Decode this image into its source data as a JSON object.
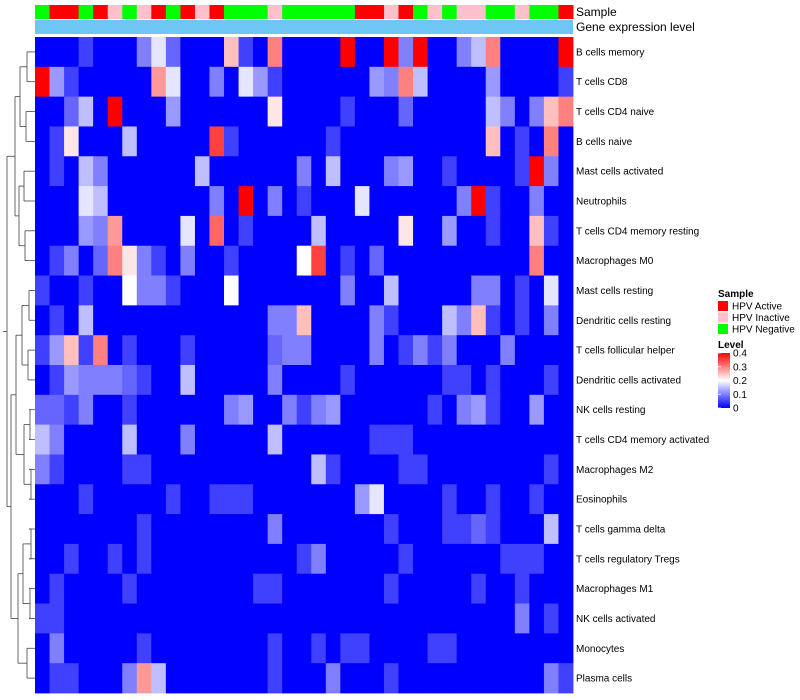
{
  "chart_data": {
    "type": "heatmap",
    "annotation_tracks": {
      "sample_label": "Sample",
      "expression_label": "Gene expression level"
    },
    "sample_legend": {
      "title": "Sample",
      "items": [
        {
          "label": "HPV Active",
          "color": "#FF0000"
        },
        {
          "label": "HPV Inactive",
          "color": "#FFC0CB"
        },
        {
          "label": "HPV Negative",
          "color": "#00FF00"
        }
      ]
    },
    "level_legend": {
      "title": "Level",
      "ticks": [
        "0.4",
        "0.3",
        "0.2",
        "0.1",
        "0"
      ],
      "range": [
        0,
        0.4
      ],
      "colors": {
        "low": "#0000FF",
        "mid": "#FFFFFF",
        "high": "#FF0000"
      }
    },
    "sample_groups": [
      "G",
      "A",
      "A",
      "G",
      "A",
      "I",
      "G",
      "I",
      "A",
      "G",
      "A",
      "I",
      "A",
      "G",
      "G",
      "G",
      "I",
      "G",
      "G",
      "G",
      "G",
      "G",
      "A",
      "A",
      "I",
      "A",
      "G",
      "I",
      "G",
      "I",
      "I",
      "G",
      "G",
      "I",
      "G",
      "G",
      "A"
    ],
    "rows": [
      "B cells memory",
      "T cells CD8",
      "T cells CD4 naive",
      "B cells naive",
      "Mast cells activated",
      "Neutrophils",
      "T cells CD4 memory resting",
      "Macrophages M0",
      "Mast cells resting",
      "Dendritic cells resting",
      "T cells follicular helper",
      "Dendritic cells activated",
      "NK cells resting",
      "T cells CD4 memory activated",
      "Macrophages M2",
      "Eosinophils",
      "T cells gamma delta",
      "T cells regulatory  Tregs",
      "Macrophages M1",
      "NK cells activated",
      "Monocytes",
      "Plasma cells"
    ],
    "values": [
      [
        0.0,
        0.0,
        0.0,
        0.05,
        0.0,
        0.0,
        0.0,
        0.1,
        0.18,
        0.08,
        0.0,
        0.0,
        0.0,
        0.25,
        0.05,
        0.0,
        0.3,
        0.0,
        0.0,
        0.0,
        0.0,
        0.4,
        0.0,
        0.0,
        0.4,
        0.1,
        0.4,
        0.0,
        0.0,
        0.1,
        0.15,
        0.3,
        0.0,
        0.0,
        0.0,
        0.0,
        0.4
      ],
      [
        0.4,
        0.12,
        0.05,
        0.0,
        0.0,
        0.0,
        0.0,
        0.0,
        0.28,
        0.18,
        0.0,
        0.0,
        0.1,
        0.0,
        0.18,
        0.12,
        0.05,
        0.0,
        0.0,
        0.0,
        0.0,
        0.0,
        0.0,
        0.12,
        0.1,
        0.3,
        0.15,
        0.0,
        0.0,
        0.0,
        0.0,
        0.12,
        0.0,
        0.0,
        0.0,
        0.0,
        0.05
      ],
      [
        0.0,
        0.0,
        0.08,
        0.15,
        0.0,
        0.4,
        0.0,
        0.0,
        0.0,
        0.12,
        0.0,
        0.0,
        0.0,
        0.0,
        0.0,
        0.0,
        0.22,
        0.0,
        0.0,
        0.0,
        0.0,
        0.05,
        0.0,
        0.0,
        0.0,
        0.08,
        0.0,
        0.0,
        0.0,
        0.0,
        0.0,
        0.15,
        0.1,
        0.0,
        0.1,
        0.25,
        0.3
      ],
      [
        0.0,
        0.05,
        0.22,
        0.0,
        0.0,
        0.0,
        0.15,
        0.0,
        0.0,
        0.0,
        0.0,
        0.0,
        0.35,
        0.05,
        0.0,
        0.0,
        0.0,
        0.0,
        0.0,
        0.0,
        0.05,
        0.0,
        0.0,
        0.0,
        0.0,
        0.0,
        0.0,
        0.0,
        0.0,
        0.0,
        0.0,
        0.25,
        0.0,
        0.05,
        0.0,
        0.3,
        0.0
      ],
      [
        0.0,
        0.05,
        0.0,
        0.15,
        0.1,
        0.0,
        0.0,
        0.0,
        0.0,
        0.0,
        0.0,
        0.15,
        0.0,
        0.0,
        0.0,
        0.0,
        0.0,
        0.0,
        0.1,
        0.0,
        0.15,
        0.0,
        0.0,
        0.0,
        0.1,
        0.12,
        0.0,
        0.0,
        0.05,
        0.0,
        0.0,
        0.0,
        0.0,
        0.05,
        0.4,
        0.1,
        0.0
      ],
      [
        0.0,
        0.0,
        0.0,
        0.18,
        0.15,
        0.0,
        0.0,
        0.0,
        0.0,
        0.0,
        0.0,
        0.0,
        0.1,
        0.0,
        0.4,
        0.0,
        0.1,
        0.0,
        0.05,
        0.0,
        0.0,
        0.0,
        0.18,
        0.0,
        0.0,
        0.0,
        0.0,
        0.0,
        0.0,
        0.1,
        0.4,
        0.05,
        0.0,
        0.0,
        0.1,
        0.0,
        0.0
      ],
      [
        0.0,
        0.0,
        0.0,
        0.12,
        0.1,
        0.28,
        0.0,
        0.0,
        0.0,
        0.0,
        0.18,
        0.0,
        0.32,
        0.0,
        0.05,
        0.0,
        0.0,
        0.0,
        0.0,
        0.15,
        0.0,
        0.0,
        0.0,
        0.0,
        0.0,
        0.22,
        0.0,
        0.0,
        0.12,
        0.0,
        0.0,
        0.05,
        0.0,
        0.0,
        0.25,
        0.05,
        0.0
      ],
      [
        0.0,
        0.05,
        0.1,
        0.0,
        0.08,
        0.3,
        0.22,
        0.1,
        0.05,
        0.0,
        0.1,
        0.0,
        0.0,
        0.05,
        0.0,
        0.0,
        0.0,
        0.0,
        0.2,
        0.35,
        0.0,
        0.05,
        0.0,
        0.08,
        0.0,
        0.0,
        0.0,
        0.0,
        0.0,
        0.0,
        0.0,
        0.0,
        0.0,
        0.0,
        0.3,
        0.0,
        0.0
      ],
      [
        0.05,
        0.0,
        0.0,
        0.05,
        0.0,
        0.0,
        0.2,
        0.1,
        0.1,
        0.05,
        0.0,
        0.0,
        0.0,
        0.2,
        0.0,
        0.0,
        0.0,
        0.0,
        0.0,
        0.0,
        0.0,
        0.1,
        0.0,
        0.0,
        0.15,
        0.0,
        0.0,
        0.0,
        0.0,
        0.0,
        0.1,
        0.1,
        0.0,
        0.05,
        0.0,
        0.18,
        0.0
      ],
      [
        0.0,
        0.05,
        0.0,
        0.15,
        0.0,
        0.0,
        0.0,
        0.0,
        0.0,
        0.0,
        0.0,
        0.0,
        0.0,
        0.0,
        0.0,
        0.0,
        0.1,
        0.1,
        0.25,
        0.0,
        0.0,
        0.0,
        0.0,
        0.1,
        0.05,
        0.0,
        0.0,
        0.0,
        0.15,
        0.1,
        0.25,
        0.05,
        0.0,
        0.05,
        0.0,
        0.1,
        0.0
      ],
      [
        0.05,
        0.12,
        0.25,
        0.05,
        0.3,
        0.0,
        0.05,
        0.0,
        0.0,
        0.0,
        0.05,
        0.0,
        0.0,
        0.0,
        0.0,
        0.0,
        0.08,
        0.1,
        0.1,
        0.0,
        0.0,
        0.0,
        0.0,
        0.1,
        0.0,
        0.05,
        0.1,
        0.05,
        0.1,
        0.0,
        0.0,
        0.0,
        0.1,
        0.0,
        0.0,
        0.0,
        0.0
      ],
      [
        0.0,
        0.05,
        0.12,
        0.1,
        0.1,
        0.1,
        0.08,
        0.05,
        0.0,
        0.0,
        0.15,
        0.0,
        0.0,
        0.0,
        0.0,
        0.0,
        0.1,
        0.0,
        0.0,
        0.0,
        0.0,
        0.05,
        0.0,
        0.0,
        0.0,
        0.0,
        0.0,
        0.0,
        0.05,
        0.05,
        0.0,
        0.05,
        0.0,
        0.0,
        0.0,
        0.05,
        0.0
      ],
      [
        0.08,
        0.08,
        0.05,
        0.1,
        0.0,
        0.0,
        0.05,
        0.0,
        0.0,
        0.0,
        0.0,
        0.0,
        0.0,
        0.1,
        0.12,
        0.0,
        0.0,
        0.1,
        0.05,
        0.1,
        0.12,
        0.0,
        0.0,
        0.0,
        0.0,
        0.0,
        0.0,
        0.05,
        0.0,
        0.1,
        0.12,
        0.05,
        0.0,
        0.0,
        0.12,
        0.0,
        0.0
      ],
      [
        0.15,
        0.1,
        0.0,
        0.0,
        0.0,
        0.0,
        0.15,
        0.0,
        0.0,
        0.0,
        0.1,
        0.0,
        0.0,
        0.0,
        0.0,
        0.0,
        0.15,
        0.0,
        0.0,
        0.0,
        0.0,
        0.0,
        0.0,
        0.05,
        0.05,
        0.05,
        0.0,
        0.0,
        0.0,
        0.0,
        0.0,
        0.0,
        0.0,
        0.0,
        0.0,
        0.0,
        0.0
      ],
      [
        0.1,
        0.05,
        0.0,
        0.0,
        0.0,
        0.0,
        0.05,
        0.05,
        0.0,
        0.0,
        0.0,
        0.0,
        0.0,
        0.0,
        0.0,
        0.0,
        0.0,
        0.0,
        0.0,
        0.15,
        0.05,
        0.0,
        0.0,
        0.0,
        0.0,
        0.05,
        0.05,
        0.0,
        0.0,
        0.0,
        0.0,
        0.0,
        0.0,
        0.0,
        0.0,
        0.05,
        0.0
      ],
      [
        0.0,
        0.0,
        0.0,
        0.05,
        0.0,
        0.0,
        0.0,
        0.0,
        0.0,
        0.05,
        0.0,
        0.0,
        0.05,
        0.05,
        0.05,
        0.0,
        0.0,
        0.0,
        0.0,
        0.0,
        0.0,
        0.0,
        0.12,
        0.18,
        0.0,
        0.0,
        0.0,
        0.0,
        0.05,
        0.0,
        0.0,
        0.05,
        0.0,
        0.0,
        0.05,
        0.0,
        0.0
      ],
      [
        0.0,
        0.0,
        0.0,
        0.0,
        0.0,
        0.0,
        0.0,
        0.05,
        0.0,
        0.0,
        0.0,
        0.0,
        0.0,
        0.0,
        0.0,
        0.0,
        0.1,
        0.0,
        0.0,
        0.0,
        0.0,
        0.0,
        0.0,
        0.0,
        0.05,
        0.0,
        0.0,
        0.0,
        0.05,
        0.05,
        0.08,
        0.05,
        0.0,
        0.0,
        0.0,
        0.15,
        0.0
      ],
      [
        0.0,
        0.0,
        0.05,
        0.0,
        0.0,
        0.05,
        0.0,
        0.05,
        0.0,
        0.0,
        0.0,
        0.0,
        0.0,
        0.0,
        0.0,
        0.0,
        0.0,
        0.0,
        0.05,
        0.1,
        0.0,
        0.0,
        0.0,
        0.0,
        0.0,
        0.05,
        0.0,
        0.0,
        0.0,
        0.0,
        0.0,
        0.0,
        0.05,
        0.05,
        0.05,
        0.0,
        0.0
      ],
      [
        0.0,
        0.05,
        0.0,
        0.0,
        0.0,
        0.0,
        0.05,
        0.0,
        0.0,
        0.0,
        0.0,
        0.0,
        0.0,
        0.0,
        0.0,
        0.05,
        0.05,
        0.0,
        0.0,
        0.0,
        0.0,
        0.0,
        0.0,
        0.0,
        0.05,
        0.0,
        0.0,
        0.0,
        0.0,
        0.0,
        0.05,
        0.0,
        0.0,
        0.05,
        0.0,
        0.0,
        0.0
      ],
      [
        0.05,
        0.05,
        0.0,
        0.0,
        0.0,
        0.0,
        0.0,
        0.0,
        0.0,
        0.0,
        0.0,
        0.0,
        0.0,
        0.0,
        0.0,
        0.0,
        0.0,
        0.0,
        0.0,
        0.0,
        0.0,
        0.0,
        0.0,
        0.0,
        0.0,
        0.0,
        0.0,
        0.0,
        0.0,
        0.0,
        0.0,
        0.0,
        0.0,
        0.1,
        0.0,
        0.05,
        0.0
      ],
      [
        0.0,
        0.1,
        0.0,
        0.0,
        0.0,
        0.0,
        0.0,
        0.05,
        0.0,
        0.0,
        0.0,
        0.0,
        0.0,
        0.0,
        0.0,
        0.0,
        0.05,
        0.0,
        0.0,
        0.05,
        0.0,
        0.05,
        0.05,
        0.0,
        0.0,
        0.0,
        0.0,
        0.05,
        0.05,
        0.0,
        0.0,
        0.0,
        0.0,
        0.0,
        0.0,
        0.0,
        0.0
      ],
      [
        0.0,
        0.05,
        0.05,
        0.0,
        0.0,
        0.0,
        0.1,
        0.28,
        0.15,
        0.0,
        0.0,
        0.0,
        0.0,
        0.0,
        0.0,
        0.0,
        0.05,
        0.0,
        0.0,
        0.0,
        0.1,
        0.0,
        0.0,
        0.0,
        0.05,
        0.0,
        0.0,
        0.0,
        0.0,
        0.0,
        0.0,
        0.0,
        0.0,
        0.0,
        0.0,
        0.1,
        0.05
      ]
    ]
  }
}
